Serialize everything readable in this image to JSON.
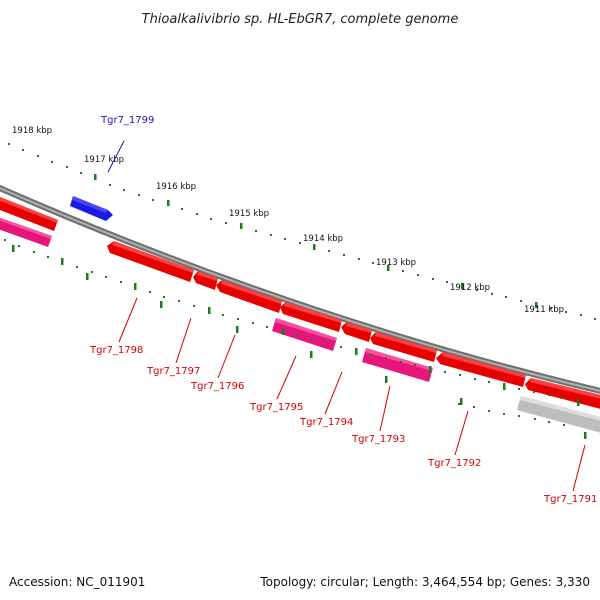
{
  "header": {
    "title": "Thioalkalivibrio sp. HL-EbGR7, complete genome"
  },
  "footer": {
    "accession": "Accession: NC_011901",
    "summary": "Topology: circular; Length: 3,464,554 bp; Genes: 3,330"
  },
  "kbp_labels": [
    "1918 kbp",
    "1917 kbp",
    "1916 kbp",
    "1915 kbp",
    "1914 kbp",
    "1913 kbp",
    "1912 kbp",
    "1911 kbp"
  ],
  "genes": [
    {
      "id": "Tgr7_1799",
      "strand": "forward",
      "color": "#1a1ae6"
    },
    {
      "id": "Tgr7_1798",
      "strand": "reverse",
      "color": "#e60000"
    },
    {
      "id": "Tgr7_1797",
      "strand": "reverse",
      "color": "#e60000"
    },
    {
      "id": "Tgr7_1796",
      "strand": "reverse",
      "color": "#e60000"
    },
    {
      "id": "Tgr7_1795",
      "strand": "reverse",
      "color": "#e6157a"
    },
    {
      "id": "Tgr7_1794",
      "strand": "reverse",
      "color": "#e60000"
    },
    {
      "id": "Tgr7_1793",
      "strand": "reverse",
      "color": "#e6157a"
    },
    {
      "id": "Tgr7_1792",
      "strand": "reverse",
      "color": "#e60000"
    },
    {
      "id": "Tgr7_1791",
      "strand": "reverse",
      "color": "#e60000"
    }
  ],
  "colors": {
    "cds_red": "#e60000",
    "cds_pink": "#e6157a",
    "cds_blue": "#1a1ae6",
    "backbone": "#8a8a8a",
    "ticks": "#1e7a1e",
    "other_feature": "#bdbdbd"
  }
}
